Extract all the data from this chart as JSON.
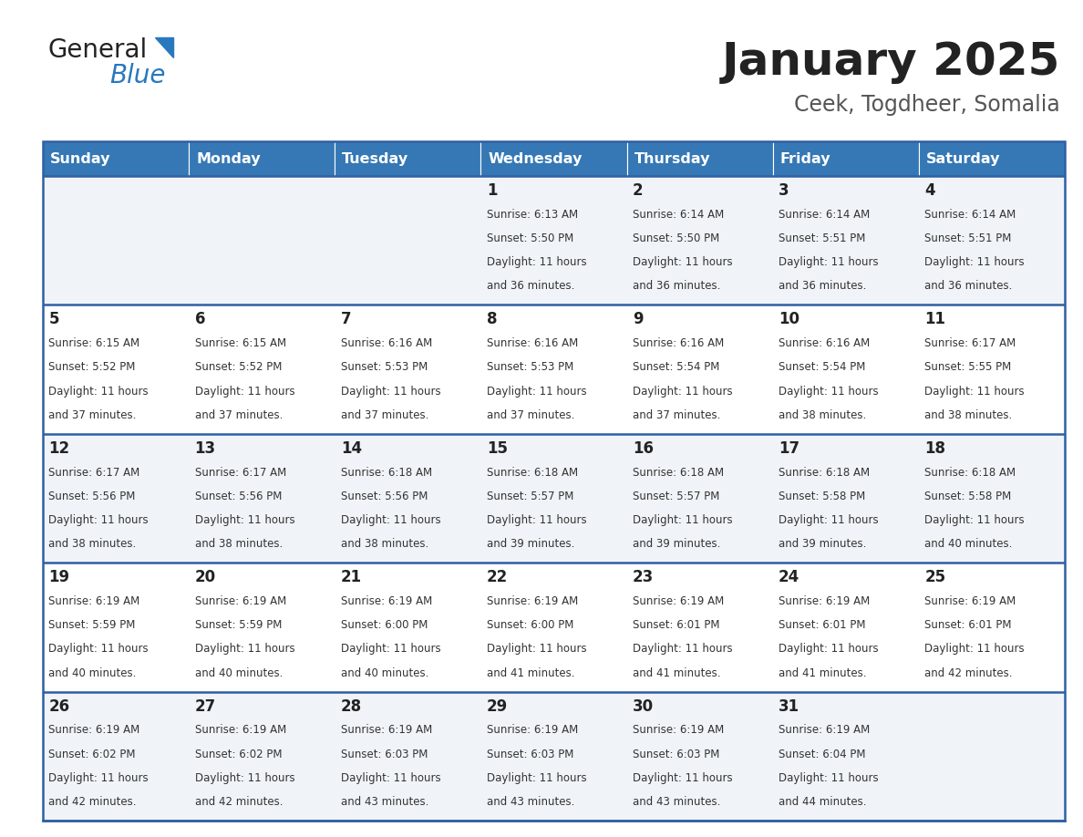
{
  "title": "January 2025",
  "subtitle": "Ceek, Togdheer, Somalia",
  "header_bg_color": "#3578b5",
  "header_text_color": "#ffffff",
  "days_of_week": [
    "Sunday",
    "Monday",
    "Tuesday",
    "Wednesday",
    "Thursday",
    "Friday",
    "Saturday"
  ],
  "row_bg_even": "#f0f4f8",
  "row_bg_odd": "#ffffff",
  "row_line_color": "#2e5fa3",
  "title_color": "#222222",
  "subtitle_color": "#555555",
  "day_number_color": "#222222",
  "cell_text_color": "#333333",
  "logo_general_color": "#222222",
  "logo_blue_color": "#2878be",
  "calendar": [
    [
      null,
      null,
      null,
      {
        "day": 1,
        "sunrise": "6:13 AM",
        "sunset": "5:50 PM",
        "daylight": "11 hours and 36 minutes"
      },
      {
        "day": 2,
        "sunrise": "6:14 AM",
        "sunset": "5:50 PM",
        "daylight": "11 hours and 36 minutes"
      },
      {
        "day": 3,
        "sunrise": "6:14 AM",
        "sunset": "5:51 PM",
        "daylight": "11 hours and 36 minutes"
      },
      {
        "day": 4,
        "sunrise": "6:14 AM",
        "sunset": "5:51 PM",
        "daylight": "11 hours and 36 minutes"
      }
    ],
    [
      {
        "day": 5,
        "sunrise": "6:15 AM",
        "sunset": "5:52 PM",
        "daylight": "11 hours and 37 minutes"
      },
      {
        "day": 6,
        "sunrise": "6:15 AM",
        "sunset": "5:52 PM",
        "daylight": "11 hours and 37 minutes"
      },
      {
        "day": 7,
        "sunrise": "6:16 AM",
        "sunset": "5:53 PM",
        "daylight": "11 hours and 37 minutes"
      },
      {
        "day": 8,
        "sunrise": "6:16 AM",
        "sunset": "5:53 PM",
        "daylight": "11 hours and 37 minutes"
      },
      {
        "day": 9,
        "sunrise": "6:16 AM",
        "sunset": "5:54 PM",
        "daylight": "11 hours and 37 minutes"
      },
      {
        "day": 10,
        "sunrise": "6:16 AM",
        "sunset": "5:54 PM",
        "daylight": "11 hours and 38 minutes"
      },
      {
        "day": 11,
        "sunrise": "6:17 AM",
        "sunset": "5:55 PM",
        "daylight": "11 hours and 38 minutes"
      }
    ],
    [
      {
        "day": 12,
        "sunrise": "6:17 AM",
        "sunset": "5:56 PM",
        "daylight": "11 hours and 38 minutes"
      },
      {
        "day": 13,
        "sunrise": "6:17 AM",
        "sunset": "5:56 PM",
        "daylight": "11 hours and 38 minutes"
      },
      {
        "day": 14,
        "sunrise": "6:18 AM",
        "sunset": "5:56 PM",
        "daylight": "11 hours and 38 minutes"
      },
      {
        "day": 15,
        "sunrise": "6:18 AM",
        "sunset": "5:57 PM",
        "daylight": "11 hours and 39 minutes"
      },
      {
        "day": 16,
        "sunrise": "6:18 AM",
        "sunset": "5:57 PM",
        "daylight": "11 hours and 39 minutes"
      },
      {
        "day": 17,
        "sunrise": "6:18 AM",
        "sunset": "5:58 PM",
        "daylight": "11 hours and 39 minutes"
      },
      {
        "day": 18,
        "sunrise": "6:18 AM",
        "sunset": "5:58 PM",
        "daylight": "11 hours and 40 minutes"
      }
    ],
    [
      {
        "day": 19,
        "sunrise": "6:19 AM",
        "sunset": "5:59 PM",
        "daylight": "11 hours and 40 minutes"
      },
      {
        "day": 20,
        "sunrise": "6:19 AM",
        "sunset": "5:59 PM",
        "daylight": "11 hours and 40 minutes"
      },
      {
        "day": 21,
        "sunrise": "6:19 AM",
        "sunset": "6:00 PM",
        "daylight": "11 hours and 40 minutes"
      },
      {
        "day": 22,
        "sunrise": "6:19 AM",
        "sunset": "6:00 PM",
        "daylight": "11 hours and 41 minutes"
      },
      {
        "day": 23,
        "sunrise": "6:19 AM",
        "sunset": "6:01 PM",
        "daylight": "11 hours and 41 minutes"
      },
      {
        "day": 24,
        "sunrise": "6:19 AM",
        "sunset": "6:01 PM",
        "daylight": "11 hours and 41 minutes"
      },
      {
        "day": 25,
        "sunrise": "6:19 AM",
        "sunset": "6:01 PM",
        "daylight": "11 hours and 42 minutes"
      }
    ],
    [
      {
        "day": 26,
        "sunrise": "6:19 AM",
        "sunset": "6:02 PM",
        "daylight": "11 hours and 42 minutes"
      },
      {
        "day": 27,
        "sunrise": "6:19 AM",
        "sunset": "6:02 PM",
        "daylight": "11 hours and 42 minutes"
      },
      {
        "day": 28,
        "sunrise": "6:19 AM",
        "sunset": "6:03 PM",
        "daylight": "11 hours and 43 minutes"
      },
      {
        "day": 29,
        "sunrise": "6:19 AM",
        "sunset": "6:03 PM",
        "daylight": "11 hours and 43 minutes"
      },
      {
        "day": 30,
        "sunrise": "6:19 AM",
        "sunset": "6:03 PM",
        "daylight": "11 hours and 43 minutes"
      },
      {
        "day": 31,
        "sunrise": "6:19 AM",
        "sunset": "6:04 PM",
        "daylight": "11 hours and 44 minutes"
      },
      null
    ]
  ]
}
